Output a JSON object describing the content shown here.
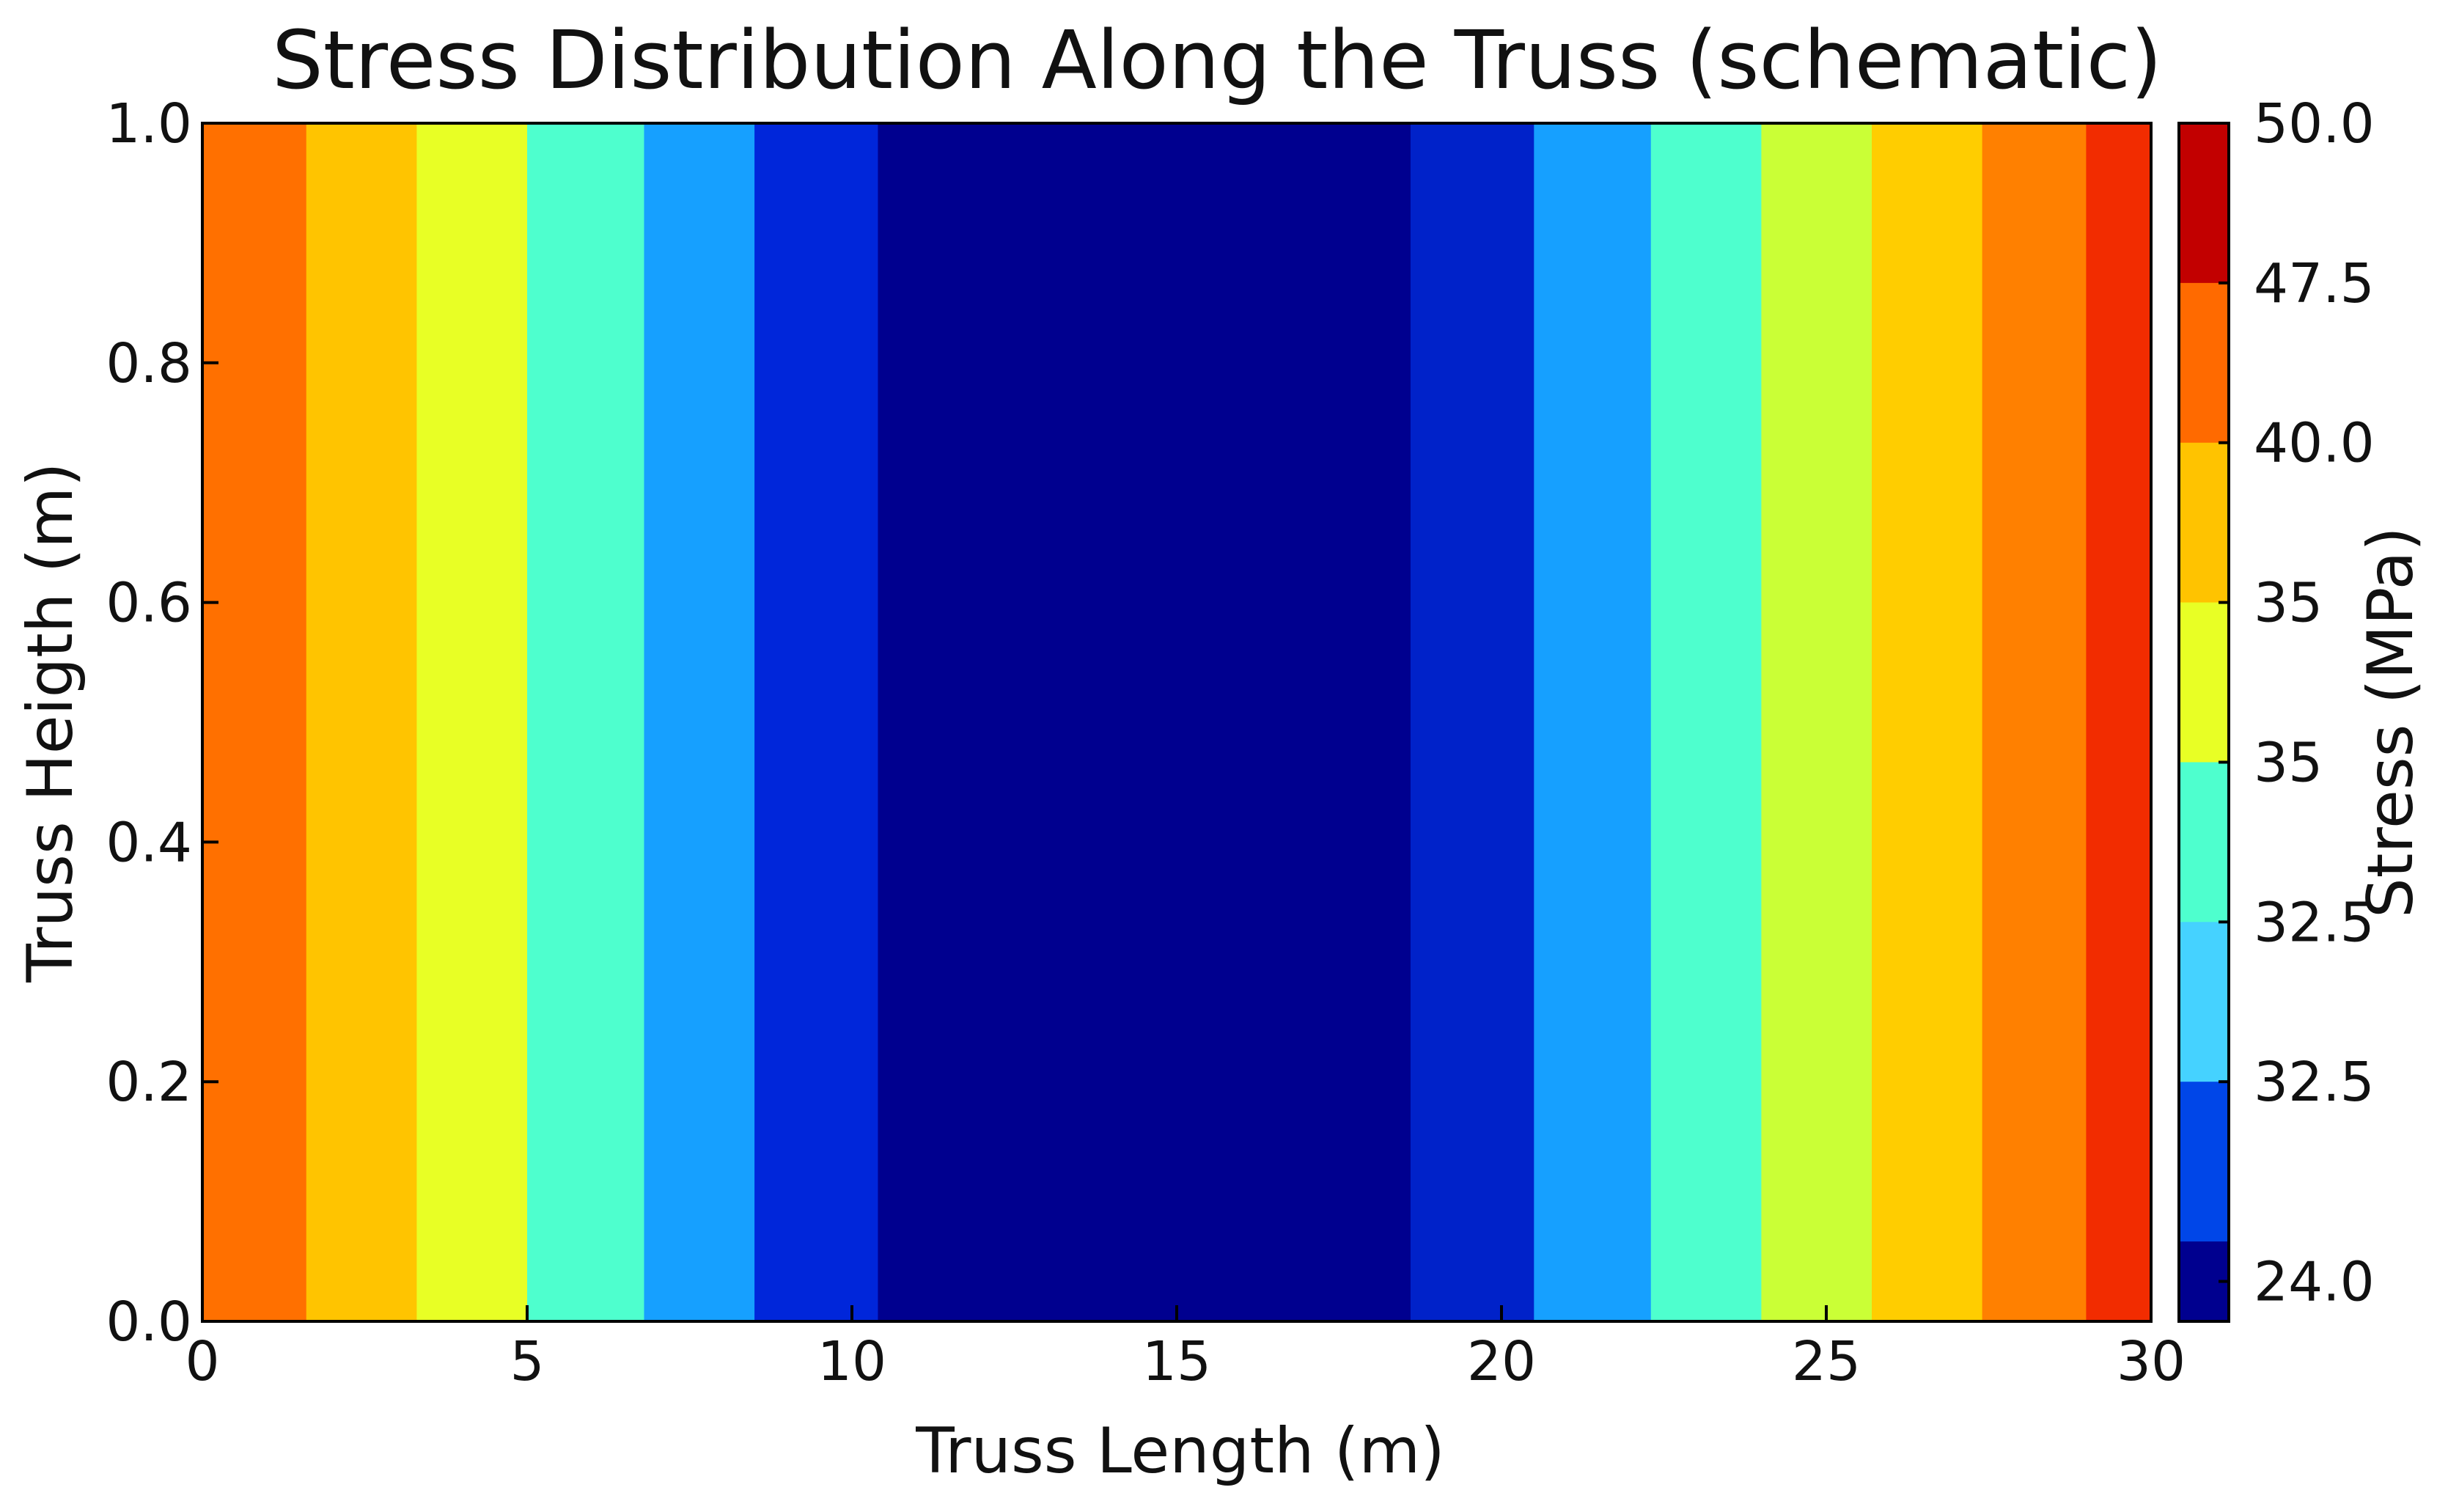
{
  "chart_data": {
    "type": "heatmap",
    "title": "Stress Distribution Along the Truss (schematic)",
    "xlabel": "Truss Length (m)",
    "ylabel": "Truss Heigth (m)",
    "xlim": [
      0,
      30
    ],
    "ylim": [
      0,
      1
    ],
    "x_ticks": [
      "0",
      "5",
      "10",
      "15",
      "20",
      "25",
      "30"
    ],
    "y_ticks": [
      "0.0",
      "0.2",
      "0.4",
      "0.6",
      "0.8",
      "1.0"
    ],
    "grid": false,
    "bands": [
      {
        "x0": 0.0,
        "x1": 1.6,
        "color": "#ff7000"
      },
      {
        "x0": 1.6,
        "x1": 3.3,
        "color": "#ffc400"
      },
      {
        "x0": 3.3,
        "x1": 5.0,
        "color": "#e8ff25"
      },
      {
        "x0": 5.0,
        "x1": 6.8,
        "color": "#4effce"
      },
      {
        "x0": 6.8,
        "x1": 8.5,
        "color": "#16a0ff"
      },
      {
        "x0": 8.5,
        "x1": 10.4,
        "color": "#0026da"
      },
      {
        "x0": 10.4,
        "x1": 18.6,
        "color": "#00008f"
      },
      {
        "x0": 18.6,
        "x1": 20.5,
        "color": "#0022c9"
      },
      {
        "x0": 20.5,
        "x1": 22.3,
        "color": "#16a0ff"
      },
      {
        "x0": 22.3,
        "x1": 24.0,
        "color": "#4effce"
      },
      {
        "x0": 24.0,
        "x1": 25.7,
        "color": "#caff36"
      },
      {
        "x0": 25.7,
        "x1": 27.4,
        "color": "#ffcd00"
      },
      {
        "x0": 27.4,
        "x1": 29.0,
        "color": "#ff8000"
      },
      {
        "x0": 29.0,
        "x1": 30.0,
        "color": "#f22c00"
      }
    ],
    "colorbar": {
      "label": "Stress (MPa)",
      "tick_labels": [
        "50.0",
        "47.5",
        "40.0",
        "35",
        "35",
        "32.5",
        "32.5",
        "24.0"
      ],
      "segments": [
        "#c20000",
        "#ff6a00",
        "#ffc300",
        "#e8ff25",
        "#4effce",
        "#45d2ff",
        "#0046e8",
        "#00008f"
      ]
    }
  }
}
